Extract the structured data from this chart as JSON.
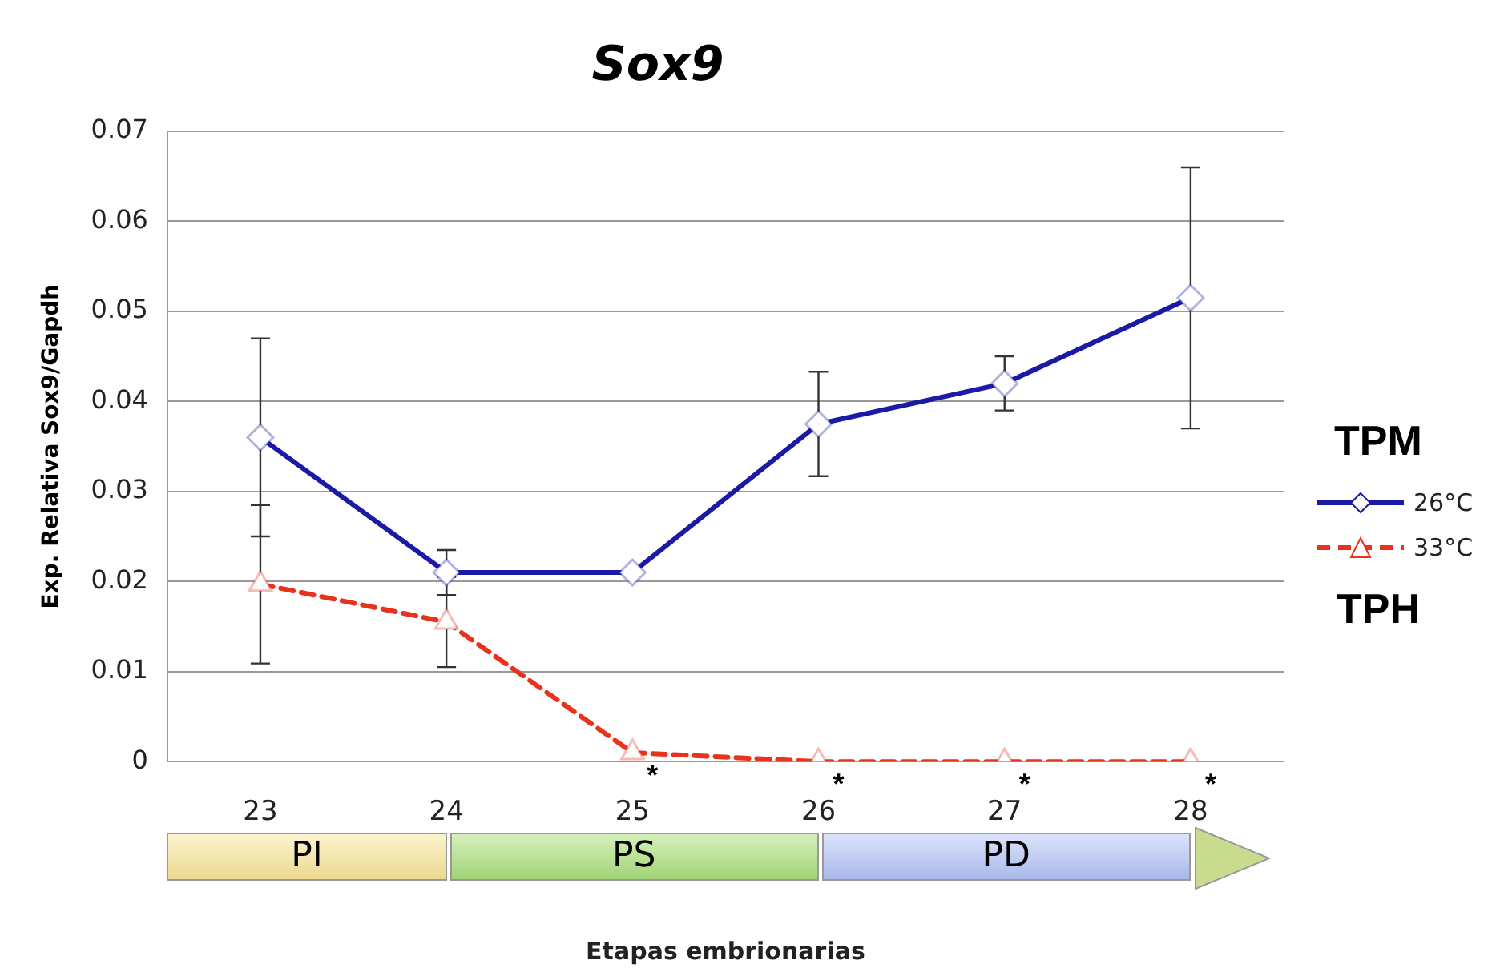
{
  "chart_data": {
    "type": "line",
    "title": "Sox9",
    "xlabel": "Etapas embrionarias",
    "ylabel": "Exp. Relativa Sox9/Gapdh",
    "categories": [
      "23",
      "24",
      "25",
      "26",
      "27",
      "28"
    ],
    "series": [
      {
        "name": "26°C",
        "color": "#1a1aa6",
        "marker": "diamond",
        "line_style": "solid",
        "values": [
          0.036,
          0.021,
          0.021,
          0.0375,
          0.042,
          0.0515
        ],
        "errors": [
          0.011,
          0.0025,
          null,
          0.0058,
          0.003,
          0.0145
        ]
      },
      {
        "name": "33°C",
        "color": "#e8321e",
        "marker": "triangle",
        "line_style": "dashed",
        "values": [
          0.0197,
          0.0155,
          0.001,
          0,
          0,
          0
        ],
        "errors": [
          0.0088,
          0.005,
          null,
          null,
          null,
          null
        ]
      }
    ],
    "ylim": [
      0,
      0.07
    ],
    "yticks": [
      0,
      0.01,
      0.02,
      0.03,
      0.04,
      0.05,
      0.06,
      0.07
    ],
    "grid": "y",
    "legend": "right",
    "legend_title": "TPM",
    "annotations": [
      {
        "text": "*",
        "x": "25",
        "y": 0.001
      },
      {
        "text": "*",
        "x": "26",
        "y": 0
      },
      {
        "text": "*",
        "x": "27",
        "y": 0
      },
      {
        "text": "*",
        "x": "28",
        "y": 0
      },
      "PI",
      "PS",
      "PD",
      "TPH"
    ]
  }
}
